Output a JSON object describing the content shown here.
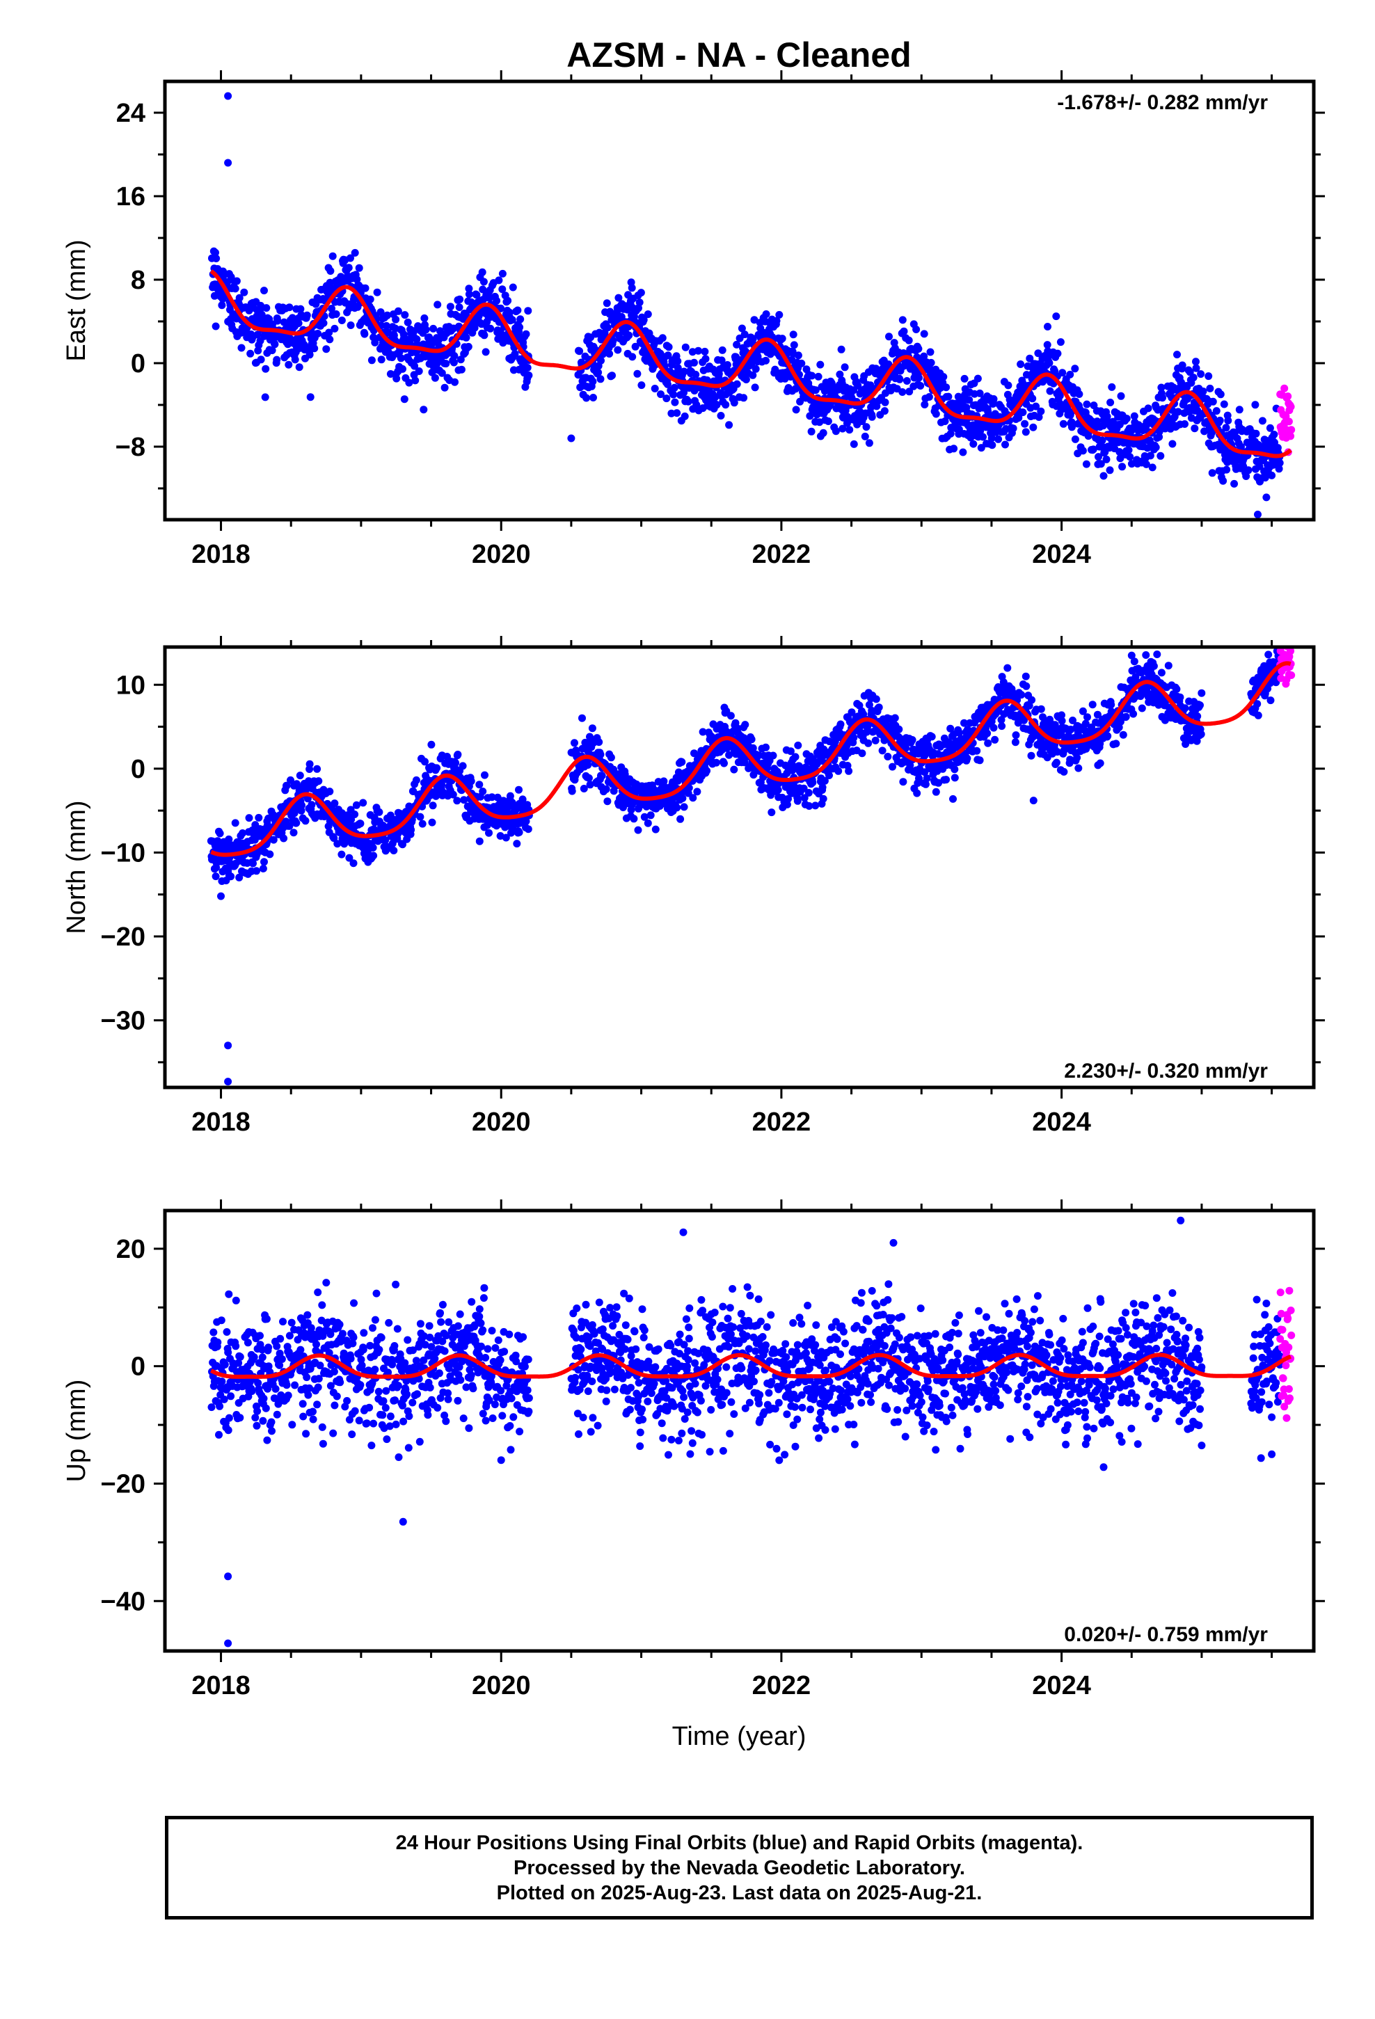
{
  "title": "AZSM  - NA - Cleaned",
  "xlabel": "Time (year)",
  "footer": {
    "line1": "24 Hour Positions Using Final Orbits (blue) and Rapid Orbits (magenta).",
    "line2": "Processed by the Nevada Geodetic Laboratory.",
    "line3": "Plotted on 2025-Aug-23. Last data on 2025-Aug-21."
  },
  "colors": {
    "final": "#0000ff",
    "rapid": "#ff00ff",
    "model": "#ff0000",
    "axis": "#000000"
  },
  "chart_data": [
    {
      "type": "scatter",
      "ylabel": "East (mm)",
      "rate_text": "-1.678+/- 0.282 mm/yr",
      "rate_position": "top-right",
      "xlim": [
        2017.6,
        2025.8
      ],
      "ylim": [
        -15,
        27
      ],
      "xticks": [
        2018,
        2020,
        2022,
        2024
      ],
      "yticks": [
        -8,
        0,
        8,
        16,
        24
      ],
      "trend": {
        "rate": -1.678,
        "at2018": 5.5,
        "annual_amp": 2.5,
        "annual_peak": 2018.9,
        "semiannual_amp": 0.8
      },
      "noise": 1.6,
      "gaps": [
        [
          2020.2,
          2020.55
        ]
      ],
      "outliers": [
        [
          2018.05,
          25.6
        ],
        [
          2018.05,
          19.2
        ],
        [
          2020.5,
          -7.2
        ],
        [
          2025.4,
          -14.5
        ],
        [
          2024.3,
          -10.8
        ],
        [
          2023.9,
          3.5
        ]
      ],
      "rapid_offset": 3.5
    },
    {
      "type": "scatter",
      "ylabel": "North (mm)",
      "rate_text": "2.230+/- 0.320 mm/yr",
      "rate_position": "bottom-right",
      "xlim": [
        2017.6,
        2025.8
      ],
      "ylim": [
        -38,
        14.5
      ],
      "xticks": [
        2018,
        2020,
        2022,
        2024
      ],
      "yticks": [
        -30,
        -20,
        -10,
        0,
        10
      ],
      "trend": {
        "rate": 2.23,
        "at2018": -8.0,
        "annual_amp": 3.0,
        "annual_peak": 2018.6,
        "semiannual_amp": 0.6
      },
      "noise": 1.5,
      "gaps": [
        [
          2020.2,
          2020.5
        ],
        [
          2025.0,
          2025.35
        ]
      ],
      "outliers": [
        [
          2018.05,
          -33.0
        ],
        [
          2018.05,
          -37.3
        ],
        [
          2018.0,
          -15.2
        ],
        [
          2023.8,
          -3.8
        ],
        [
          2024.5,
          13.5
        ]
      ],
      "rapid_offset": 1.0
    },
    {
      "type": "scatter",
      "ylabel": "Up (mm)",
      "rate_text": "0.020+/- 0.759 mm/yr",
      "rate_position": "bottom-right",
      "xlim": [
        2017.6,
        2025.8
      ],
      "ylim": [
        -48.5,
        26.5
      ],
      "xticks": [
        2018,
        2020,
        2022,
        2024
      ],
      "yticks": [
        -40,
        -20,
        0,
        20
      ],
      "trend": {
        "rate": 0.02,
        "at2018": -0.5,
        "annual_amp": 1.8,
        "annual_peak": 2018.7,
        "semiannual_amp": 0.5
      },
      "noise": 4.8,
      "gaps": [
        [
          2020.2,
          2020.5
        ],
        [
          2025.0,
          2025.35
        ]
      ],
      "outliers": [
        [
          2018.05,
          -35.8
        ],
        [
          2018.05,
          -47.2
        ],
        [
          2019.3,
          -26.5
        ],
        [
          2021.3,
          22.8
        ],
        [
          2022.8,
          21.0
        ],
        [
          2024.85,
          24.8
        ],
        [
          2024.3,
          -17.2
        ],
        [
          2020.0,
          -16.0
        ],
        [
          2025.0,
          -13.5
        ],
        [
          2025.5,
          -15.0
        ]
      ],
      "rapid_offset": 0.0
    }
  ]
}
